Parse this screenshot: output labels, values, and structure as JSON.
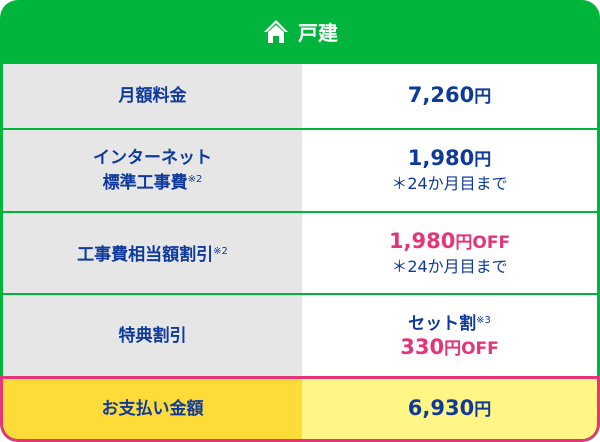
{
  "header": {
    "icon": "house-icon",
    "title": "戸建"
  },
  "rows": [
    {
      "label": "月額料金",
      "value": "7,260",
      "unit": "円"
    },
    {
      "label_line1": "インターネット",
      "label_line2": "標準工事費",
      "label_note": "※2",
      "value": "1,980",
      "unit": "円",
      "sub": "＊24か月目まで"
    },
    {
      "label": "工事費相当額割引",
      "label_note": "※2",
      "value": "1,980",
      "unit": "円",
      "suffix": "OFF",
      "sub": "＊24か月目まで"
    },
    {
      "label": "特典割引",
      "value_line1": "セット割",
      "value_note": "※3",
      "value": "330",
      "unit": "円",
      "suffix": "OFF"
    }
  ],
  "total": {
    "label": "お支払い金額",
    "value": "6,930",
    "unit": "円"
  },
  "colors": {
    "green": "#00b43c",
    "navy": "#0f3a9c",
    "pink": "#e5357a",
    "yellow": "#fddc3a",
    "light_yellow": "#fff685",
    "gray": "#e6e6e6"
  }
}
